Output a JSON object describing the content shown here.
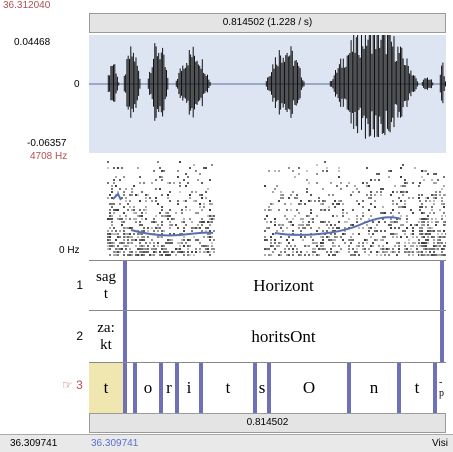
{
  "window": {
    "cursor_time": "36.312040",
    "selection_label": "0.814502 (1.228 / s)",
    "selection_duration": "0.814502",
    "status_start": "36.309741",
    "status_start_blue": "36.309741",
    "status_right": "Visi"
  },
  "waveform": {
    "max": "0.04468",
    "zero": "0",
    "min": "-0.06357"
  },
  "spectrogram": {
    "max_freq": "4708 Hz",
    "min_freq": "0 Hz"
  },
  "tiers": [
    {
      "number": "1",
      "intervals": [
        "sag\nt",
        "Horizont"
      ]
    },
    {
      "number": "2",
      "intervals": [
        "za:\nkt",
        "horitsOnt"
      ]
    },
    {
      "number": "3",
      "marker": "☞",
      "intervals": [
        "t",
        "o",
        "r",
        "i",
        "t",
        "s",
        "O",
        "n",
        "t",
        "-\np"
      ]
    }
  ],
  "colors": {
    "waveform_bg": "#dde5f3",
    "boundary": "#6e70b8",
    "selected_interval": "#efe6b0",
    "pitch": "#5a6fb0",
    "accent_red": "#b05050"
  }
}
